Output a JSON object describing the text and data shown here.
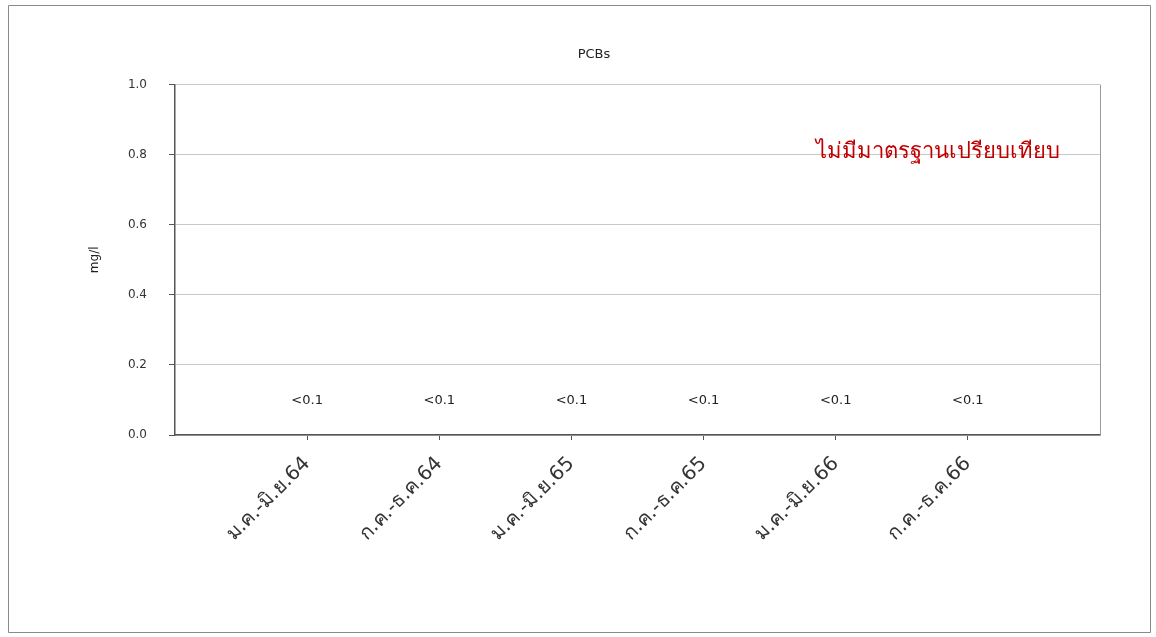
{
  "chart_data": {
    "type": "line",
    "title": "PCBs",
    "ylabel": "mg/l",
    "categories": [
      "ม.ค.-มิ.ย.64",
      "ก.ค.-ธ.ค.64",
      "ม.ค.-มิ.ย.65",
      "ก.ค.-ธ.ค.65",
      "ม.ค.-มิ.ย.66",
      "ก.ค.-ธ.ค.66"
    ],
    "values": [
      null,
      null,
      null,
      null,
      null,
      null
    ],
    "ylim": [
      0,
      1
    ],
    "yticks": [
      {
        "value": 0,
        "label": "0.0"
      },
      0.2,
      0.4,
      0.6,
      0.8,
      {
        "value": 1,
        "label": "1.0"
      }
    ],
    "grid": "y",
    "legend": false,
    "annotations": [
      "ไม่มีมาตรฐานเปรียบเทียบ",
      "<0.1",
      "<0.1",
      "<0.1",
      "<0.1",
      "<0.1",
      "<0.1"
    ]
  }
}
